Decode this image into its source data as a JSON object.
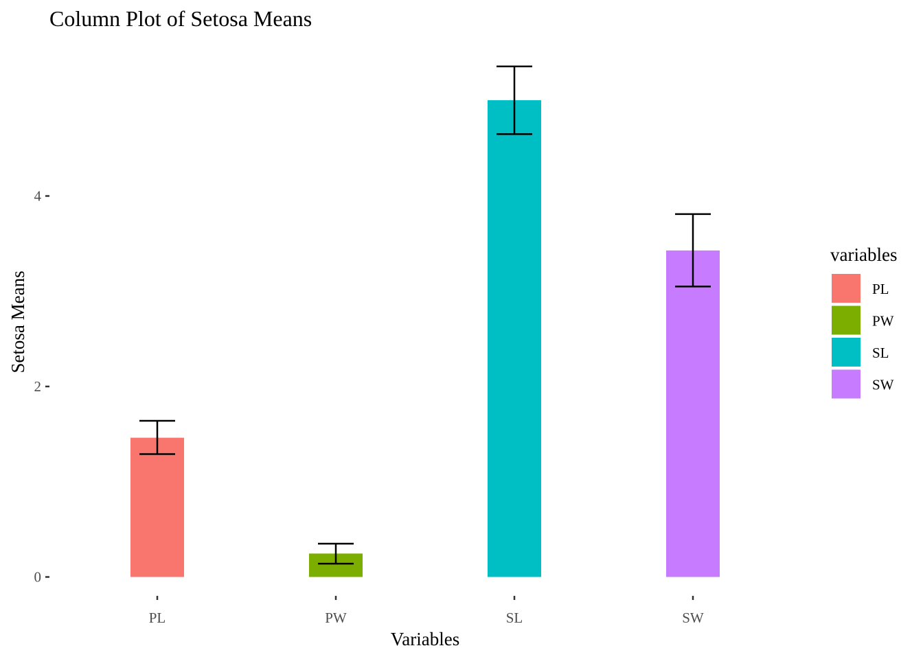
{
  "chart_data": {
    "type": "bar",
    "title": "Column Plot of Setosa Means",
    "xlabel": "Variables",
    "ylabel": "Setosa Means",
    "categories": [
      "PL",
      "PW",
      "SL",
      "SW"
    ],
    "values": [
      1.462,
      0.246,
      5.006,
      3.428
    ],
    "error_lower": [
      1.29,
      0.14,
      4.65,
      3.05
    ],
    "error_upper": [
      1.64,
      0.35,
      5.36,
      3.81
    ],
    "colors": [
      "#F8766D",
      "#7CAE00",
      "#00BFC4",
      "#C77CFF"
    ],
    "ylim": [
      -0.2,
      5.36
    ],
    "yticks": [
      0,
      2,
      4
    ],
    "ytick_labels": [
      "0",
      "2",
      "4"
    ],
    "grid": false,
    "legend": {
      "title": "variables",
      "position": "right",
      "entries": [
        "PL",
        "PW",
        "SL",
        "SW"
      ]
    }
  }
}
